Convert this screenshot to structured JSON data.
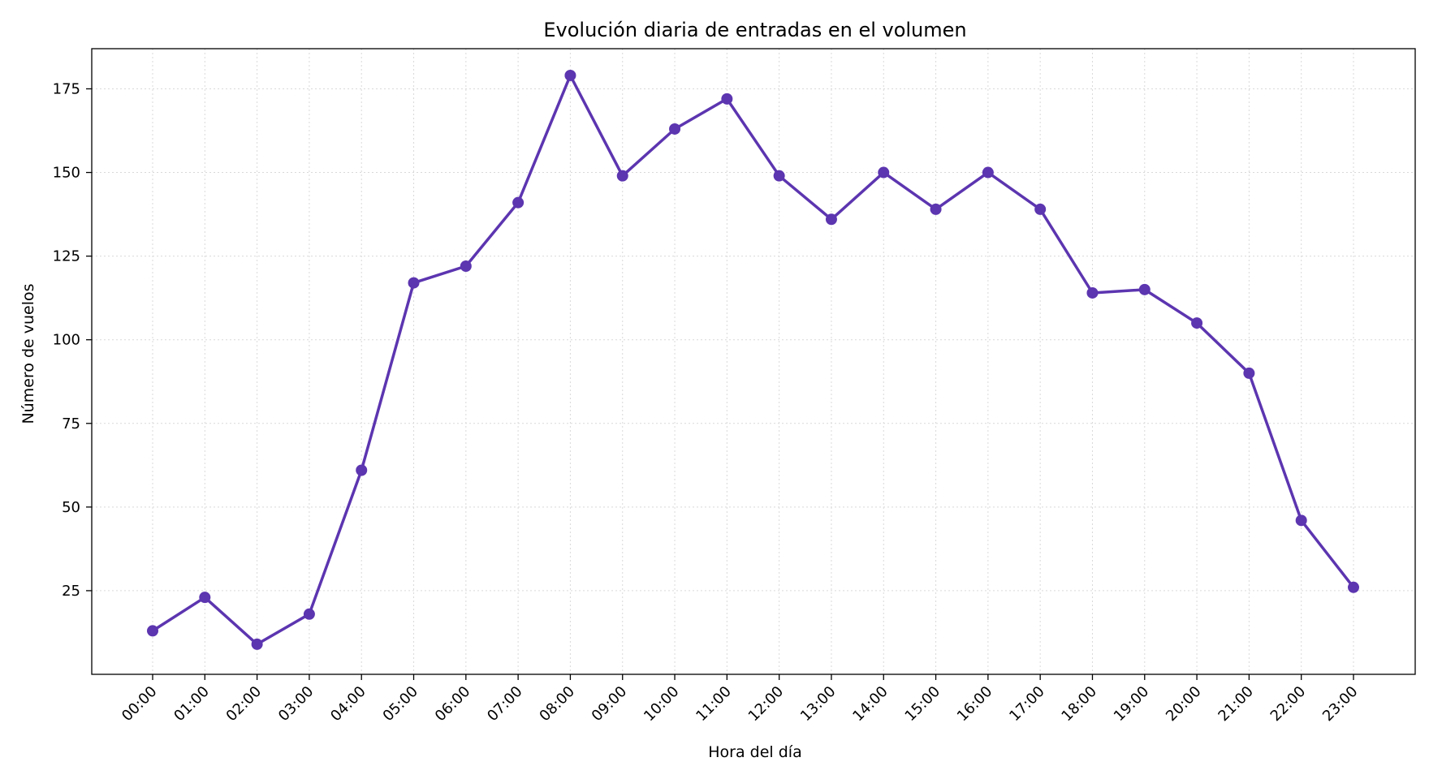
{
  "chart_data": {
    "type": "line",
    "title": "Evolución diaria de entradas en el volumen",
    "xlabel": "Hora del día",
    "ylabel": "Número de vuelos",
    "categories": [
      "00:00",
      "01:00",
      "02:00",
      "03:00",
      "04:00",
      "05:00",
      "06:00",
      "07:00",
      "08:00",
      "09:00",
      "10:00",
      "11:00",
      "12:00",
      "13:00",
      "14:00",
      "15:00",
      "16:00",
      "17:00",
      "18:00",
      "19:00",
      "20:00",
      "21:00",
      "22:00",
      "23:00"
    ],
    "series": [
      {
        "values": [
          13,
          23,
          9,
          18,
          61,
          117,
          122,
          141,
          179,
          149,
          163,
          172,
          149,
          136,
          150,
          139,
          150,
          139,
          114,
          115,
          105,
          90,
          46,
          26
        ],
        "color": "#5c35b0"
      }
    ],
    "yticks": [
      25,
      50,
      75,
      100,
      125,
      150,
      175
    ],
    "ylim": [
      0,
      187
    ],
    "grid": true,
    "marker": "circle"
  }
}
